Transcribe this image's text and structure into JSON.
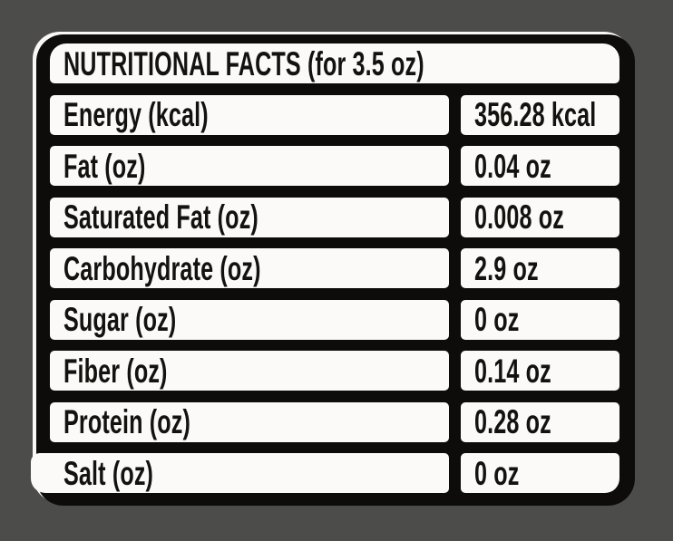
{
  "label": {
    "title": "NUTRITIONAL FACTS (for 3.5 oz)",
    "rows": [
      {
        "name": "Energy (kcal)",
        "value": "356.28 kcal"
      },
      {
        "name": "Fat (oz)",
        "value": "0.04 oz"
      },
      {
        "name": "Saturated Fat (oz)",
        "value": "0.008 oz"
      },
      {
        "name": "Carbohydrate (oz)",
        "value": "2.9 oz"
      },
      {
        "name": "Sugar (oz)",
        "value": "0 oz"
      },
      {
        "name": "Fiber (oz)",
        "value": "0.14 oz"
      },
      {
        "name": "Protein (oz)",
        "value": "0.28 oz"
      },
      {
        "name": "Salt (oz)",
        "value": "0 oz"
      }
    ],
    "colors": {
      "background": "#4c4c4b",
      "card_black": "#0d0c0b",
      "cell_white": "#fbfaf8",
      "text": "#14120f",
      "edge_highlight": "#f8f7f4"
    }
  }
}
